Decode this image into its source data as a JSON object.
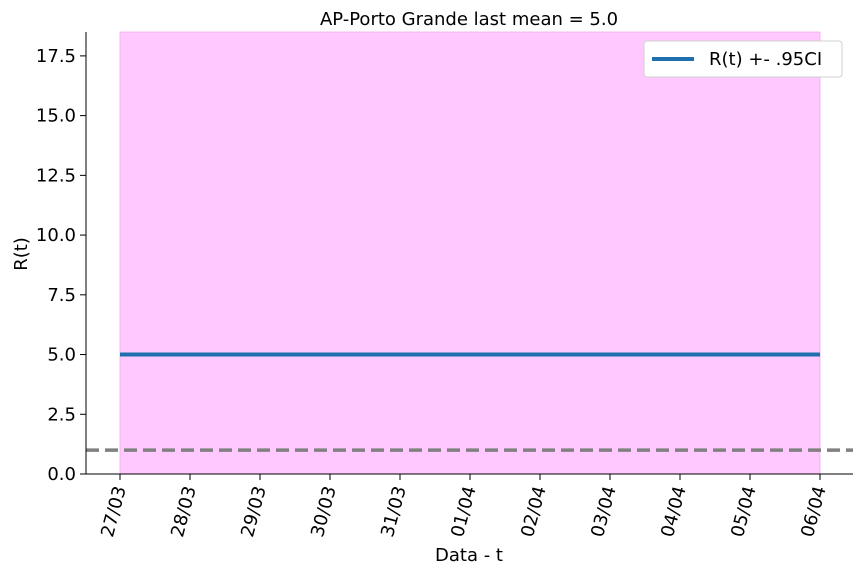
{
  "chart_data": {
    "type": "line",
    "title": "AP-Porto Grande last mean = 5.0",
    "xlabel": "Data - t",
    "ylabel": "R(t)",
    "categories": [
      "27/03",
      "28/03",
      "29/03",
      "30/03",
      "31/03",
      "01/04",
      "02/04",
      "03/04",
      "04/04",
      "05/04",
      "06/04"
    ],
    "series": [
      {
        "name": "R(t) +- .95CI",
        "values": [
          5.0,
          5.0,
          5.0,
          5.0,
          5.0,
          5.0,
          5.0,
          5.0,
          5.0,
          5.0,
          5.0
        ],
        "ci_low": [
          0,
          0,
          0,
          0,
          0,
          0,
          0,
          0,
          0,
          0,
          0
        ],
        "ci_high": [
          18.5,
          18.5,
          18.5,
          18.5,
          18.5,
          18.5,
          18.5,
          18.5,
          18.5,
          18.5,
          18.5
        ],
        "color": "#1f6fae",
        "ci_color": "#ffc9ff"
      }
    ],
    "reference_line": {
      "y": 1.0,
      "style": "dashed",
      "color": "#808080"
    },
    "ylim": [
      0,
      18.5
    ],
    "yticks": [
      0.0,
      2.5,
      5.0,
      7.5,
      10.0,
      12.5,
      15.0,
      17.5
    ],
    "ytick_labels": [
      "0.0",
      "2.5",
      "5.0",
      "7.5",
      "10.0",
      "12.5",
      "15.0",
      "17.5"
    ],
    "legend": {
      "label": "R(t) +- .95CI",
      "placement": "top-right"
    },
    "grid": false
  }
}
